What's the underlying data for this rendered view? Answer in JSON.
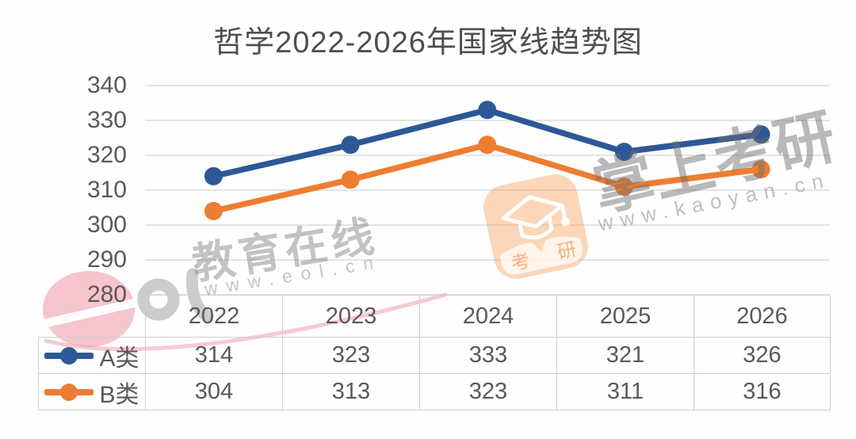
{
  "chart_data": {
    "type": "line",
    "title": "哲学2022-2026年国家线趋势图",
    "categories": [
      "2022",
      "2023",
      "2024",
      "2025",
      "2026"
    ],
    "series": [
      {
        "name": "A类",
        "color": "#2d5896",
        "values": [
          314,
          323,
          333,
          321,
          326
        ]
      },
      {
        "name": "B类",
        "color": "#ed7d31",
        "values": [
          304,
          313,
          323,
          311,
          316
        ]
      }
    ],
    "ylim": [
      280,
      340
    ],
    "yticks": [
      340,
      330,
      320,
      310,
      300,
      290,
      280
    ],
    "grid": true,
    "legend_position": "data-table-left",
    "data_table": true
  },
  "colors": {
    "series_a": "#2d5896",
    "series_b": "#ed7d31",
    "gridline": "#dcdcdc",
    "table_border": "#cfcfcf",
    "text": "#595959"
  },
  "watermarks": {
    "eol_text": "教育在线",
    "eol_url": "www.eol.cn",
    "kaoyan_text": "掌上考研",
    "kaoyan_url": "www.kaoyan.cn",
    "badge_left": "考",
    "badge_right": "研",
    "pink": "#ef96a4",
    "gray": "#bbbbbb",
    "orange": "#f6954a"
  }
}
